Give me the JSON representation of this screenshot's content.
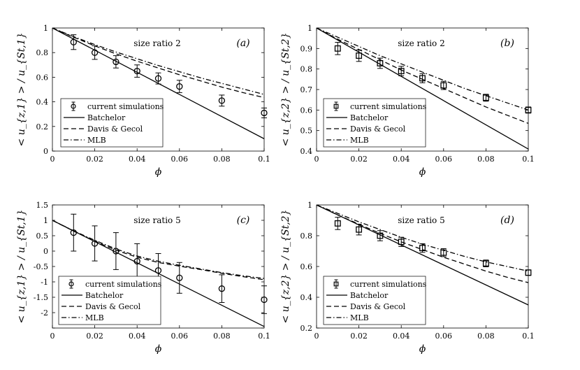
{
  "chart_data": [
    {
      "type": "line",
      "panel_tag": "(a)",
      "annotation": "size ratio 2",
      "ylabel": "< u_{z,1} > / u_{St,1}",
      "xlabel": "ϕ",
      "xlim": [
        0,
        0.1
      ],
      "ylim": [
        0,
        1
      ],
      "xticks": [
        "0",
        "0.02",
        "0.04",
        "0.06",
        "0.08",
        "0.1"
      ],
      "yticks": [
        "0",
        "0.2",
        "0.4",
        "0.6",
        "0.8",
        "1"
      ],
      "marker": "circle",
      "legend": [
        "current simulations",
        "Batchelor",
        "Davis & Gecol",
        "MLB"
      ],
      "series": [
        {
          "name": "current simulations",
          "style": "marker",
          "x": [
            0.01,
            0.02,
            0.03,
            0.04,
            0.05,
            0.06,
            0.08,
            0.1
          ],
          "y": [
            0.885,
            0.8,
            0.725,
            0.65,
            0.59,
            0.525,
            0.41,
            0.31
          ],
          "err": [
            0.06,
            0.055,
            0.05,
            0.05,
            0.045,
            0.05,
            0.045,
            0.04
          ]
        },
        {
          "name": "Batchelor",
          "style": "solid",
          "x": [
            0,
            0.1
          ],
          "y": [
            1,
            0.1
          ]
        },
        {
          "name": "Davis & Gecol",
          "style": "dashed",
          "x": [
            0,
            0.01,
            0.02,
            0.03,
            0.04,
            0.05,
            0.06,
            0.07,
            0.08,
            0.09,
            0.1
          ],
          "y": [
            1,
            0.925,
            0.855,
            0.79,
            0.73,
            0.675,
            0.62,
            0.57,
            0.52,
            0.475,
            0.435
          ]
        },
        {
          "name": "MLB",
          "style": "dashdot",
          "x": [
            0,
            0.01,
            0.02,
            0.03,
            0.04,
            0.05,
            0.06,
            0.07,
            0.08,
            0.09,
            0.1
          ],
          "y": [
            1,
            0.93,
            0.865,
            0.805,
            0.75,
            0.695,
            0.645,
            0.595,
            0.55,
            0.505,
            0.46
          ]
        }
      ]
    },
    {
      "type": "line",
      "panel_tag": "(b)",
      "annotation": "size ratio 2",
      "ylabel": "< u_{z,2} > / u_{St,2}",
      "xlabel": "ϕ",
      "xlim": [
        0,
        0.1
      ],
      "ylim": [
        0.4,
        1
      ],
      "xticks": [
        "0",
        "0.02",
        "0.04",
        "0.06",
        "0.08",
        "0.1"
      ],
      "yticks": [
        "0.4",
        "0.5",
        "0.6",
        "0.7",
        "0.8",
        "0.9",
        "1"
      ],
      "marker": "square",
      "legend": [
        "current simulations",
        "Batchelor",
        "Davis & Gecol",
        "MLB"
      ],
      "series": [
        {
          "name": "current simulations",
          "style": "marker",
          "x": [
            0.01,
            0.02,
            0.03,
            0.04,
            0.05,
            0.06,
            0.08,
            0.1
          ],
          "y": [
            0.9,
            0.865,
            0.828,
            0.79,
            0.755,
            0.72,
            0.66,
            0.6
          ],
          "err": [
            0.03,
            0.028,
            0.025,
            0.023,
            0.022,
            0.02,
            0.017,
            0.015
          ]
        },
        {
          "name": "Batchelor",
          "style": "solid",
          "x": [
            0,
            0.1
          ],
          "y": [
            1,
            0.41
          ]
        },
        {
          "name": "Davis & Gecol",
          "style": "dashed",
          "x": [
            0,
            0.01,
            0.02,
            0.03,
            0.04,
            0.05,
            0.06,
            0.07,
            0.08,
            0.09,
            0.1
          ],
          "y": [
            1,
            0.945,
            0.895,
            0.845,
            0.795,
            0.75,
            0.705,
            0.66,
            0.615,
            0.575,
            0.535
          ]
        },
        {
          "name": "MLB",
          "style": "dashdot",
          "x": [
            0,
            0.01,
            0.02,
            0.03,
            0.04,
            0.05,
            0.06,
            0.07,
            0.08,
            0.09,
            0.1
          ],
          "y": [
            1,
            0.955,
            0.91,
            0.865,
            0.825,
            0.785,
            0.745,
            0.705,
            0.67,
            0.635,
            0.6
          ]
        }
      ]
    },
    {
      "type": "line",
      "panel_tag": "(c)",
      "annotation": "size ratio 5",
      "ylabel": "< u_{z,1} > / u_{St,1}",
      "xlabel": "ϕ",
      "xlim": [
        0,
        0.1
      ],
      "ylim": [
        -2.5,
        1.5
      ],
      "xticks": [
        "0",
        "0.02",
        "0.04",
        "0.06",
        "0.08",
        "0.1"
      ],
      "yticks": [
        "-2.5",
        "-2",
        "-1.5",
        "-1",
        "-0.5",
        "0",
        "0.5",
        "1",
        "1.5"
      ],
      "yticks_shown": [
        "-2",
        "-1.5",
        "-1",
        "-0.5",
        "0",
        "0.5",
        "1",
        "1.5"
      ],
      "marker": "circle",
      "legend": [
        "current simulations",
        "Batchelor",
        "Davis & Gecol",
        "MLB"
      ],
      "series": [
        {
          "name": "current simulations",
          "style": "marker",
          "x": [
            0.01,
            0.02,
            0.03,
            0.04,
            0.05,
            0.06,
            0.08,
            0.1
          ],
          "y": [
            0.6,
            0.25,
            0.0,
            -0.33,
            -0.63,
            -0.87,
            -1.22,
            -1.58
          ],
          "err": [
            0.6,
            0.57,
            0.6,
            0.57,
            0.55,
            0.5,
            0.45,
            0.45
          ]
        },
        {
          "name": "Batchelor",
          "style": "solid",
          "x": [
            0,
            0.1
          ],
          "y": [
            1,
            -2.45
          ]
        },
        {
          "name": "Davis & Gecol",
          "style": "dashed",
          "x": [
            0,
            0.01,
            0.02,
            0.03,
            0.04,
            0.05,
            0.06,
            0.07,
            0.08,
            0.09,
            0.1
          ],
          "y": [
            1,
            0.65,
            0.32,
            0.03,
            -0.2,
            -0.37,
            -0.49,
            -0.6,
            -0.72,
            -0.83,
            -0.93
          ]
        },
        {
          "name": "MLB",
          "style": "dashdot",
          "x": [
            0,
            0.01,
            0.02,
            0.03,
            0.04,
            0.05,
            0.06,
            0.07,
            0.08,
            0.09,
            0.1
          ],
          "y": [
            1,
            0.66,
            0.35,
            0.07,
            -0.16,
            -0.33,
            -0.46,
            -0.58,
            -0.7,
            -0.8,
            -0.89
          ]
        }
      ]
    },
    {
      "type": "line",
      "panel_tag": "(d)",
      "annotation": "size ratio 5",
      "ylabel": "< u_{z,2} > / u_{St,2}",
      "xlabel": "ϕ",
      "xlim": [
        0,
        0.1
      ],
      "ylim": [
        0.2,
        1
      ],
      "xticks": [
        "0",
        "0.02",
        "0.04",
        "0.06",
        "0.08",
        "0.1"
      ],
      "yticks": [
        "0.2",
        "0.4",
        "0.6",
        "0.8",
        "1"
      ],
      "marker": "square",
      "legend": [
        "current simulations",
        "Batchelor",
        "Davis & Gecol",
        "MLB"
      ],
      "series": [
        {
          "name": "current simulations",
          "style": "marker",
          "x": [
            0.01,
            0.02,
            0.03,
            0.04,
            0.05,
            0.06,
            0.08,
            0.1
          ],
          "y": [
            0.88,
            0.84,
            0.8,
            0.76,
            0.72,
            0.69,
            0.62,
            0.56
          ],
          "err": [
            0.04,
            0.035,
            0.033,
            0.03,
            0.028,
            0.026,
            0.022,
            0.018
          ]
        },
        {
          "name": "Batchelor",
          "style": "solid",
          "x": [
            0,
            0.1
          ],
          "y": [
            1,
            0.35
          ]
        },
        {
          "name": "Davis & Gecol",
          "style": "dashed",
          "x": [
            0,
            0.01,
            0.02,
            0.03,
            0.04,
            0.05,
            0.06,
            0.07,
            0.08,
            0.09,
            0.1
          ],
          "y": [
            1,
            0.935,
            0.875,
            0.815,
            0.76,
            0.71,
            0.66,
            0.615,
            0.57,
            0.53,
            0.495
          ]
        },
        {
          "name": "MLB",
          "style": "dashdot",
          "x": [
            0,
            0.01,
            0.02,
            0.03,
            0.04,
            0.05,
            0.06,
            0.07,
            0.08,
            0.09,
            0.1
          ],
          "y": [
            1,
            0.945,
            0.89,
            0.84,
            0.79,
            0.745,
            0.705,
            0.665,
            0.63,
            0.6,
            0.57
          ]
        }
      ]
    }
  ]
}
